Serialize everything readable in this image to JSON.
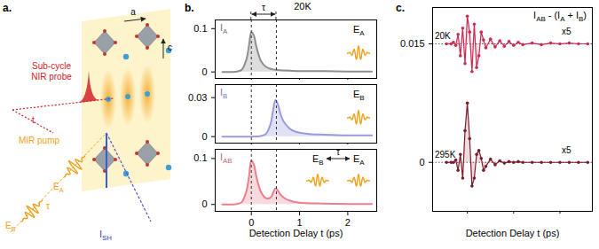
{
  "panel_labels": [
    "a.",
    "b.",
    "c."
  ],
  "diagram": {
    "axes": [
      "a",
      "c"
    ],
    "probe": [
      "Sub-cycle",
      "NIR probe"
    ],
    "probe_delay": "t",
    "pump": "MIR pump",
    "fields": [
      [
        {
          "t": "E"
        },
        {
          "sub": "A"
        }
      ],
      [
        {
          "t": "E"
        },
        {
          "sub": "B"
        }
      ]
    ],
    "pump_delay": "τ",
    "signal": [
      {
        "t": "I"
      },
      {
        "sub": "SH"
      }
    ]
  },
  "chart_data": [
    {
      "type": "area",
      "title": "20K",
      "delay": "τ",
      "fields": [
        [
          {
            "t": "E"
          },
          {
            "sub": "A"
          }
        ]
      ],
      "xlim": [
        -0.75,
        2.6
      ],
      "xticks": [
        0,
        1,
        2
      ],
      "ylim": [
        -0.015,
        0.12
      ],
      "yticks": [
        0,
        0.1
      ],
      "tick_labels": "y",
      "grid": false,
      "vlines": [
        0,
        0.52
      ],
      "series": [
        {
          "label": [
            {
              "t": "I"
            },
            {
              "sub": "A"
            }
          ],
          "color": "#8f8f8f",
          "x": [
            -0.6,
            -0.4,
            -0.3,
            -0.2,
            -0.1,
            -0.05,
            0,
            0.05,
            0.1,
            0.15,
            0.2,
            0.3,
            0.4,
            0.5,
            0.6,
            0.8,
            1.0,
            1.5,
            2.0,
            2.5
          ],
          "values": [
            0,
            0,
            0.001,
            0.005,
            0.03,
            0.06,
            0.092,
            0.085,
            0.06,
            0.04,
            0.025,
            0.012,
            0.007,
            0.005,
            0.004,
            0.003,
            0.002,
            0.002,
            0.001,
            0.001
          ]
        }
      ]
    },
    {
      "type": "area",
      "fields": [
        [
          {
            "t": "E"
          },
          {
            "sub": "B"
          }
        ]
      ],
      "xlim": [
        -0.75,
        2.6
      ],
      "xticks": [
        0,
        1,
        2
      ],
      "ylim": [
        -0.005,
        0.04
      ],
      "yticks": [
        0,
        0.03
      ],
      "tick_labels": "y",
      "grid": false,
      "vlines": [
        0,
        0.52
      ],
      "series": [
        {
          "label": [
            {
              "t": "I"
            },
            {
              "sub": "B"
            }
          ],
          "color": "#9a9ae0",
          "x": [
            -0.6,
            -0.2,
            0,
            0.2,
            0.3,
            0.4,
            0.45,
            0.5,
            0.55,
            0.6,
            0.65,
            0.7,
            0.8,
            0.9,
            1.0,
            1.2,
            1.5,
            2.0,
            2.5
          ],
          "values": [
            0,
            0,
            0,
            0.0005,
            0.002,
            0.01,
            0.02,
            0.028,
            0.025,
            0.018,
            0.013,
            0.01,
            0.006,
            0.004,
            0.003,
            0.002,
            0.0015,
            0.001,
            0.001
          ]
        }
      ]
    },
    {
      "type": "area",
      "delay": "τ",
      "fields": [
        [
          {
            "t": "E"
          },
          {
            "sub": "B"
          }
        ],
        [
          {
            "t": "E"
          },
          {
            "sub": "A"
          }
        ]
      ],
      "xlabel": "Detection Delay t (ps)",
      "xlim": [
        -0.75,
        2.6
      ],
      "xticks": [
        0,
        1,
        2
      ],
      "ylim": [
        -0.015,
        0.12
      ],
      "yticks": [
        0,
        0.1
      ],
      "grid": false,
      "vlines": [
        0,
        0.52
      ],
      "series": [
        {
          "label": [
            {
              "t": "I"
            },
            {
              "sub": "AB"
            }
          ],
          "color": "#e8808e",
          "x": [
            -0.6,
            -0.4,
            -0.3,
            -0.2,
            -0.1,
            -0.05,
            0,
            0.05,
            0.1,
            0.15,
            0.2,
            0.3,
            0.4,
            0.45,
            0.5,
            0.55,
            0.6,
            0.7,
            0.8,
            1.0,
            1.5,
            2.0,
            2.5
          ],
          "values": [
            0,
            0,
            0.001,
            0.005,
            0.03,
            0.06,
            0.095,
            0.088,
            0.062,
            0.042,
            0.027,
            0.014,
            0.015,
            0.025,
            0.035,
            0.03,
            0.022,
            0.013,
            0.008,
            0.004,
            0.002,
            0.001,
            0.001
          ]
        }
      ]
    },
    {
      "type": "line",
      "title": [
        {
          "t": "I"
        },
        {
          "sub": "AB"
        },
        {
          "t": " - (I"
        },
        {
          "sub": "A"
        },
        {
          "t": " + I"
        },
        {
          "sub": "B"
        },
        {
          "t": ")"
        }
      ],
      "xlabel": "Detection Delay t (ps)",
      "xlim": [
        -0.75,
        2.7
      ],
      "xticks": [
        0,
        1,
        2
      ],
      "ylim": [
        -0.0062,
        0.0196
      ],
      "yticks": [
        0,
        0.015
      ],
      "tick_labels": "y",
      "grid": false,
      "x": [
        -0.45,
        -0.35,
        -0.3,
        -0.25,
        -0.2,
        -0.15,
        -0.1,
        -0.05,
        0,
        0.05,
        0.1,
        0.15,
        0.2,
        0.25,
        0.3,
        0.35,
        0.4,
        0.5,
        0.6,
        0.7,
        0.8,
        0.9,
        1.0,
        1.1,
        1.2,
        1.4,
        1.6,
        1.8,
        2.0,
        2.2,
        2.4,
        2.6
      ],
      "series": [
        {
          "name": "20K",
          "color": "#cc2a52",
          "marker": "circle",
          "baseline": 0.015,
          "annotation": "x5",
          "values": [
            0.015,
            0.015,
            0.0152,
            0.0148,
            0.0162,
            0.0135,
            0.017,
            0.0125,
            0.0185,
            0.0165,
            0.0115,
            0.0175,
            0.012,
            0.0135,
            0.0165,
            0.0155,
            0.0145,
            0.0156,
            0.0146,
            0.0154,
            0.0147,
            0.0153,
            0.0148,
            0.0152,
            0.0149,
            0.0151,
            0.0149,
            0.0151,
            0.015,
            0.0151,
            0.015,
            0.015
          ]
        },
        {
          "name": "295K",
          "color": "#7b1c2c",
          "marker": "circle",
          "baseline": 0,
          "annotation": "x5",
          "values": [
            0,
            0,
            0,
            0.0003,
            -0.001,
            0.001,
            -0.002,
            0.004,
            0.0075,
            0.003,
            -0.003,
            -0.002,
            0.001,
            0.0015,
            0.0005,
            -0.001,
            -0.0005,
            0.0004,
            -0.0003,
            0.0002,
            -0.0001,
            0.0001,
            0,
            0.0001,
            0,
            0,
            0,
            0,
            0,
            0,
            0,
            0
          ]
        }
      ]
    }
  ]
}
